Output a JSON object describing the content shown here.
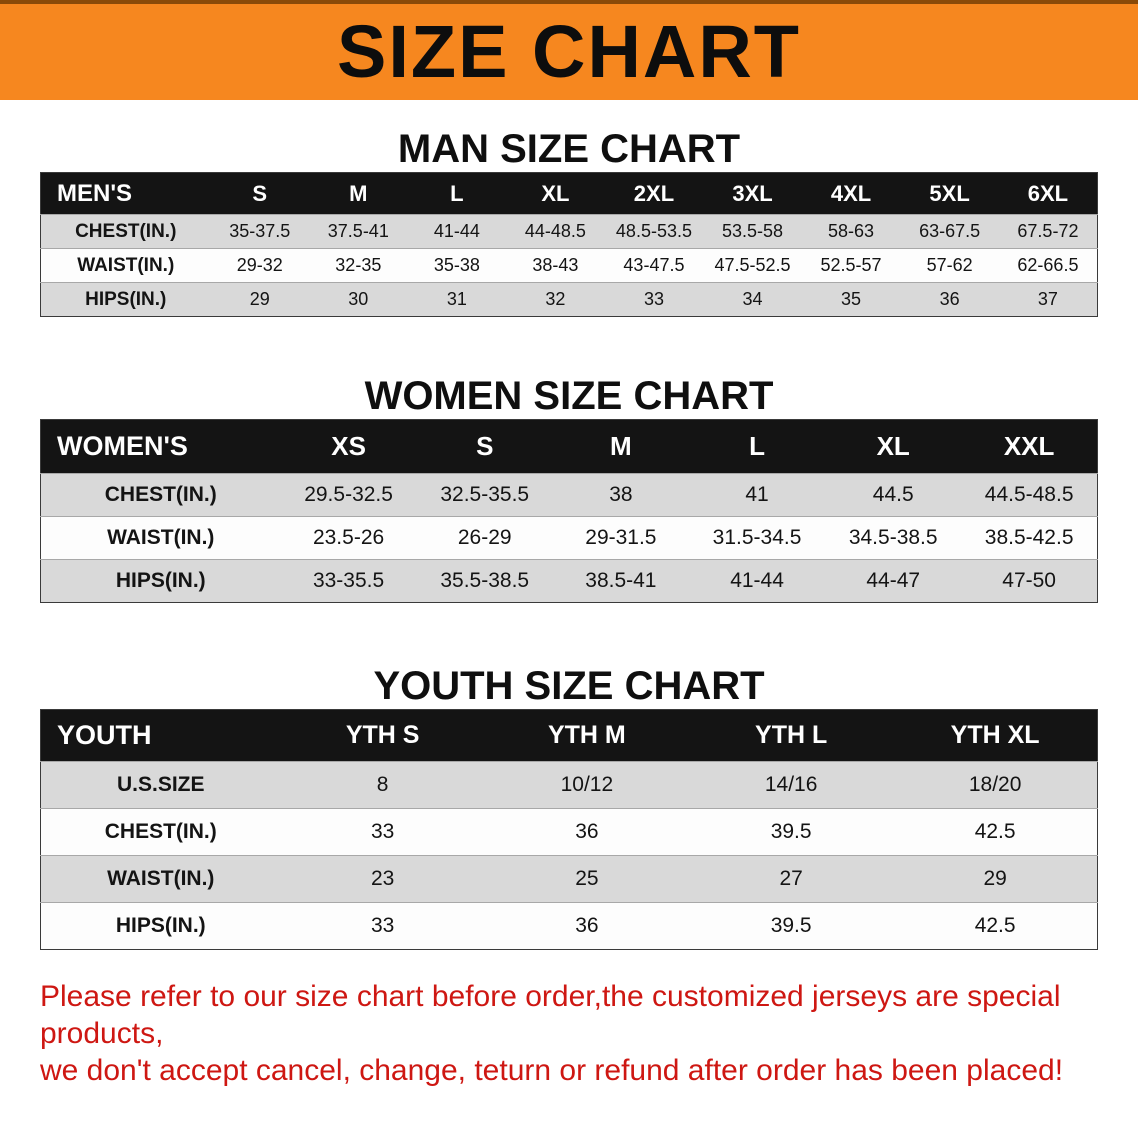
{
  "colors": {
    "banner": "#f6871f",
    "headerbg": "#141414",
    "stripe": "#d9d9d9",
    "red": "#ce1712"
  },
  "banner": {
    "title": "SIZE CHART"
  },
  "sections": [
    {
      "heading": "MAN SIZE CHART",
      "table": {
        "header": [
          "MEN'S",
          "S",
          "M",
          "L",
          "XL",
          "2XL",
          "3XL",
          "4XL",
          "5XL",
          "6XL"
        ],
        "rows": [
          {
            "label": "CHEST(IN.)",
            "values": [
              "35-37.5",
              "37.5-41",
              "41-44",
              "44-48.5",
              "48.5-53.5",
              "53.5-58",
              "58-63",
              "63-67.5",
              "67.5-72"
            ]
          },
          {
            "label": "WAIST(IN.)",
            "values": [
              "29-32",
              "32-35",
              "35-38",
              "38-43",
              "43-47.5",
              "47.5-52.5",
              "52.5-57",
              "57-62",
              "62-66.5"
            ]
          },
          {
            "label": "HIPS(IN.)",
            "values": [
              "29",
              "30",
              "31",
              "32",
              "33",
              "34",
              "35",
              "36",
              "37"
            ]
          }
        ]
      }
    },
    {
      "heading": "WOMEN SIZE CHART",
      "table": {
        "header": [
          "WOMEN'S",
          "XS",
          "S",
          "M",
          "L",
          "XL",
          "XXL"
        ],
        "rows": [
          {
            "label": "CHEST(IN.)",
            "values": [
              "29.5-32.5",
              "32.5-35.5",
              "38",
              "41",
              "44.5",
              "44.5-48.5"
            ]
          },
          {
            "label": "WAIST(IN.)",
            "values": [
              "23.5-26",
              "26-29",
              "29-31.5",
              "31.5-34.5",
              "34.5-38.5",
              "38.5-42.5"
            ]
          },
          {
            "label": "HIPS(IN.)",
            "values": [
              "33-35.5",
              "35.5-38.5",
              "38.5-41",
              "41-44",
              "44-47",
              "47-50"
            ]
          }
        ]
      }
    },
    {
      "heading": "YOUTH SIZE CHART",
      "table": {
        "header": [
          "YOUTH",
          "YTH S",
          "YTH M",
          "YTH L",
          "YTH XL"
        ],
        "rows": [
          {
            "label": "U.S.SIZE",
            "values": [
              "8",
              "10/12",
              "14/16",
              "18/20"
            ]
          },
          {
            "label": "CHEST(IN.)",
            "values": [
              "33",
              "36",
              "39.5",
              "42.5"
            ]
          },
          {
            "label": "WAIST(IN.)",
            "values": [
              "23",
              "25",
              "27",
              "29"
            ]
          },
          {
            "label": "HIPS(IN.)",
            "values": [
              "33",
              "36",
              "39.5",
              "42.5"
            ]
          }
        ]
      }
    }
  ],
  "disclaimer": {
    "lines": [
      "Please refer to our size chart before order,the customized jerseys are special products,",
      "we don't accept cancel, change, teturn or refund after order has been placed!"
    ]
  }
}
